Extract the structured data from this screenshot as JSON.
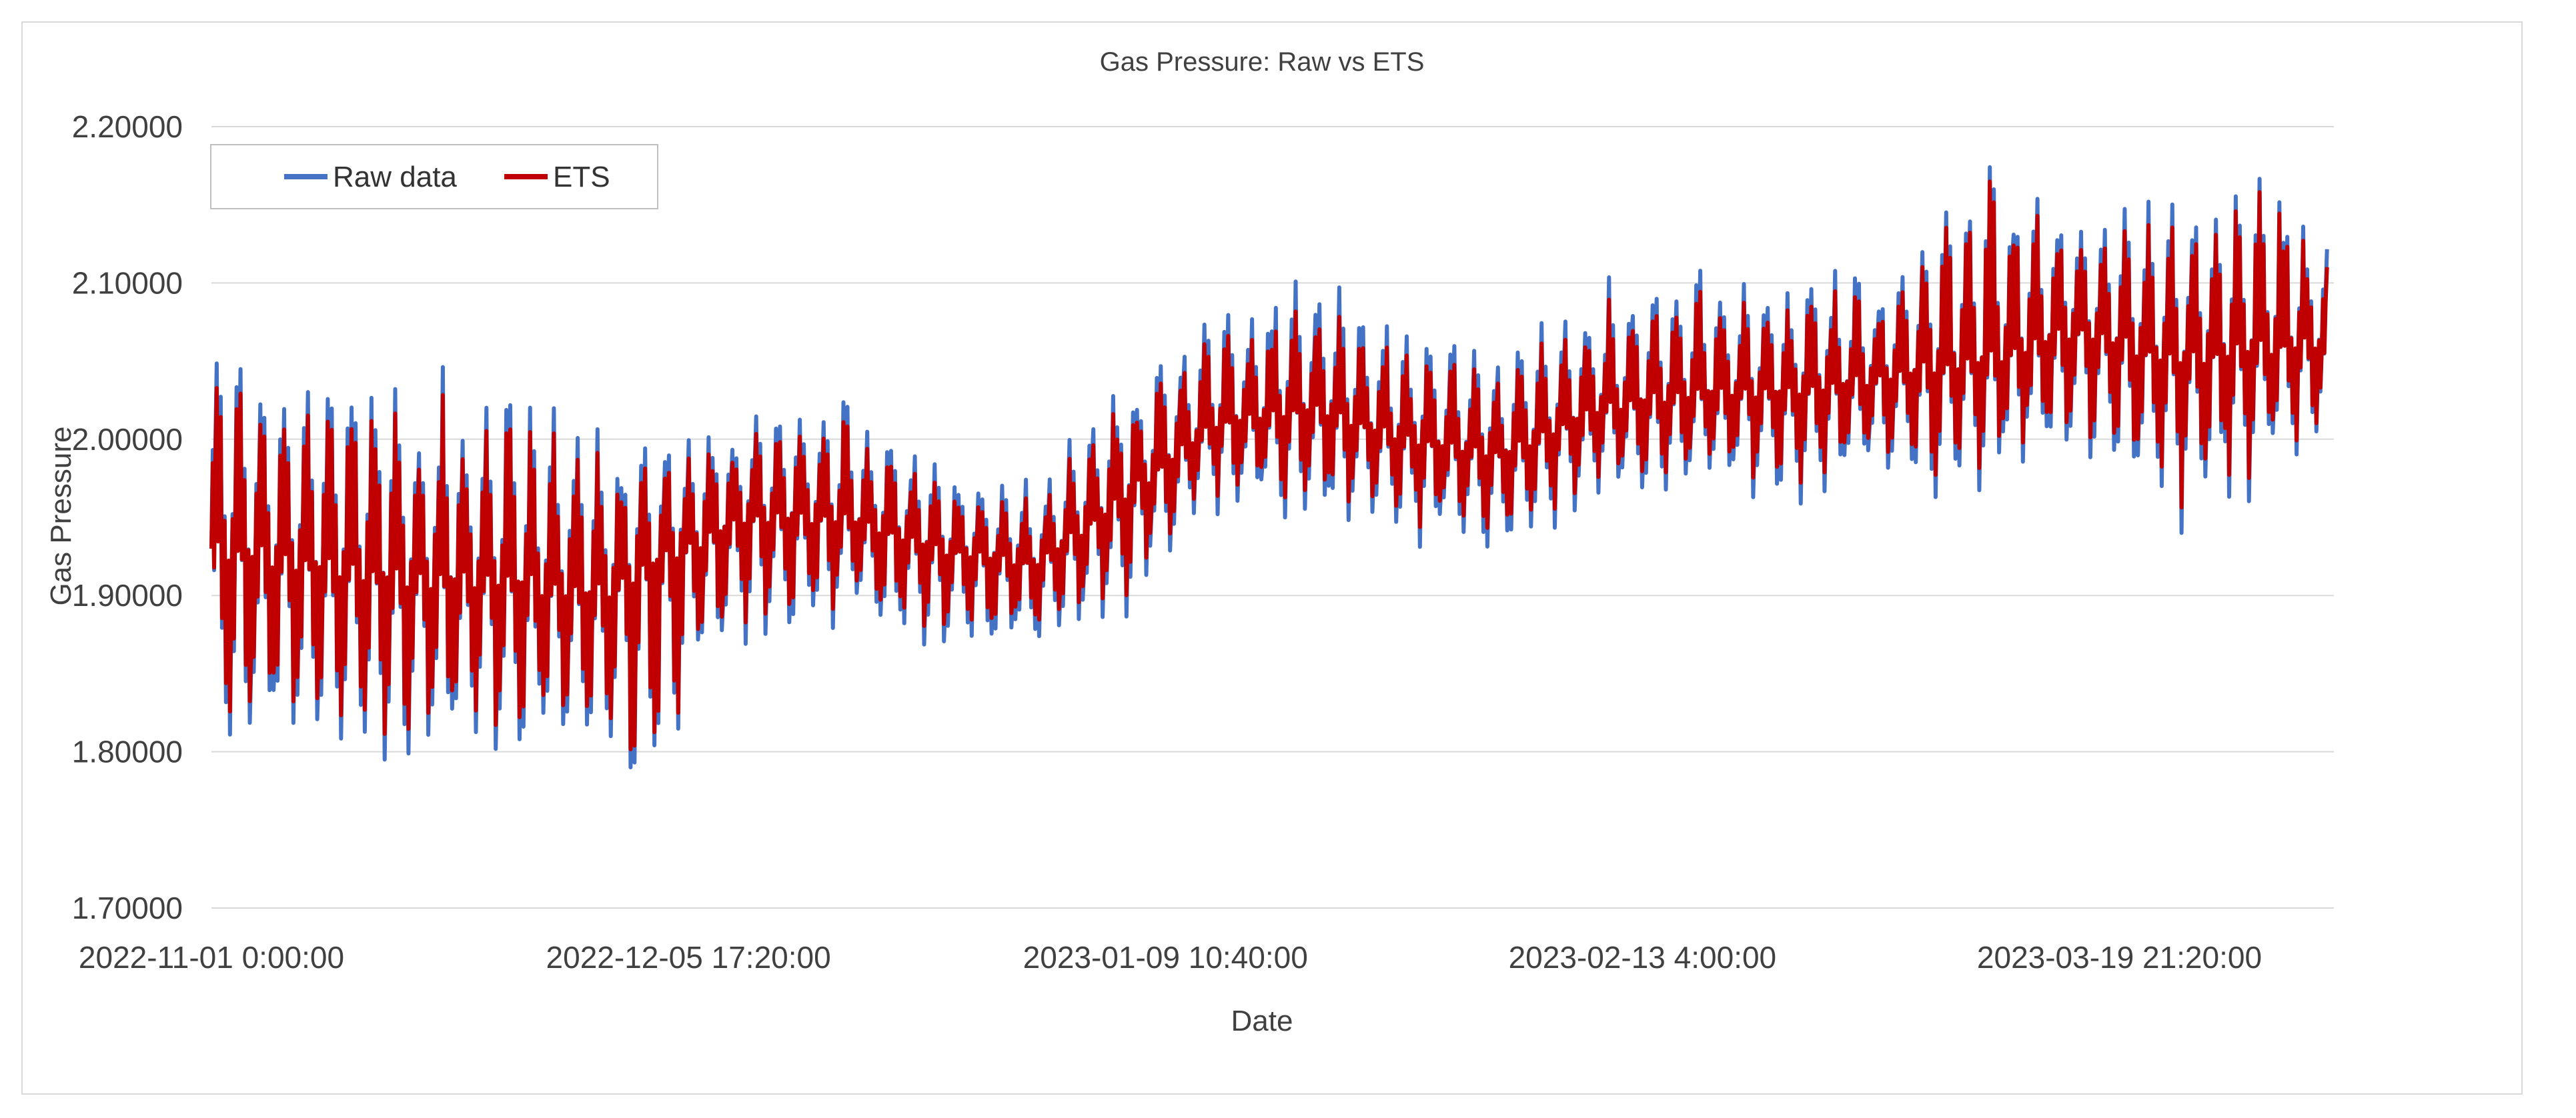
{
  "chart_data": {
    "type": "line",
    "title": "Gas Pressure: Raw vs ETS",
    "xlabel": "Date",
    "ylabel": "Gas Pressure",
    "ylim": [
      1.7,
      2.2
    ],
    "ytick_labels": [
      "1.70000",
      "1.80000",
      "1.90000",
      "2.00000",
      "2.10000",
      "2.20000"
    ],
    "xtick_labels": [
      "2022-11-01 0:00:00",
      "2022-12-05 17:20:00",
      "2023-01-09 10:40:00",
      "2023-02-13 4:00:00",
      "2023-03-19 21:20:00"
    ],
    "x_range": [
      "2022-11-01 0:00:00",
      "2023-04-04"
    ],
    "grid": "horizontal",
    "legend_position": "top-left",
    "series": [
      {
        "name": "Raw data",
        "color": "#4472C4",
        "x": [
          "2022-11-01",
          "2022-11-08",
          "2022-11-15",
          "2022-11-22",
          "2022-11-29",
          "2022-12-03",
          "2022-12-10",
          "2022-12-17",
          "2022-12-24",
          "2022-12-31",
          "2023-01-06",
          "2023-01-13",
          "2023-01-20",
          "2023-01-27",
          "2023-02-03",
          "2023-02-10",
          "2023-02-17",
          "2023-02-24",
          "2023-03-03",
          "2023-03-10",
          "2023-03-17",
          "2023-03-24",
          "2023-03-31",
          "2023-04-04"
        ],
        "center": [
          1.93,
          1.92,
          1.91,
          1.91,
          1.9,
          1.92,
          1.95,
          1.95,
          1.93,
          1.92,
          1.96,
          2.01,
          2.02,
          2.0,
          1.99,
          2.02,
          2.03,
          2.03,
          2.04,
          2.05,
          2.07,
          2.05,
          2.06,
          2.06
        ],
        "min": [
          1.76,
          1.78,
          1.78,
          1.78,
          1.77,
          1.77,
          1.86,
          1.86,
          1.85,
          1.86,
          1.87,
          1.94,
          1.94,
          1.92,
          1.92,
          1.94,
          1.95,
          1.95,
          1.95,
          1.96,
          1.97,
          1.93,
          1.95,
          2.0
        ],
        "max": [
          2.08,
          2.06,
          2.07,
          2.05,
          2.03,
          2.01,
          2.04,
          2.04,
          1.99,
          1.98,
          2.06,
          2.09,
          2.13,
          2.08,
          2.07,
          2.11,
          2.12,
          2.12,
          2.12,
          2.2,
          2.15,
          2.17,
          2.2,
          2.14
        ]
      },
      {
        "name": "ETS",
        "color": "#C00000",
        "x": [
          "2022-11-01",
          "2022-11-08",
          "2022-11-15",
          "2022-11-22",
          "2022-11-29",
          "2022-12-03",
          "2022-12-10",
          "2022-12-17",
          "2022-12-24",
          "2022-12-31",
          "2023-01-06",
          "2023-01-13",
          "2023-01-20",
          "2023-01-27",
          "2023-02-03",
          "2023-02-10",
          "2023-02-17",
          "2023-02-24",
          "2023-03-03",
          "2023-03-10",
          "2023-03-17",
          "2023-03-24",
          "2023-03-31",
          "2023-04-04"
        ],
        "center": [
          1.93,
          1.92,
          1.91,
          1.91,
          1.9,
          1.92,
          1.95,
          1.95,
          1.93,
          1.92,
          1.96,
          2.01,
          2.02,
          2.0,
          1.99,
          2.02,
          2.03,
          2.03,
          2.04,
          2.05,
          2.07,
          2.05,
          2.06,
          2.06
        ],
        "min": [
          1.77,
          1.79,
          1.79,
          1.79,
          1.78,
          1.77,
          1.87,
          1.87,
          1.86,
          1.87,
          1.88,
          1.95,
          1.95,
          1.93,
          1.93,
          1.95,
          1.96,
          1.96,
          1.96,
          1.97,
          1.98,
          1.94,
          1.96,
          2.0
        ],
        "max": [
          2.07,
          2.05,
          2.06,
          2.04,
          2.02,
          2.0,
          2.03,
          2.03,
          1.98,
          1.97,
          2.05,
          2.08,
          2.11,
          2.07,
          2.06,
          2.1,
          2.11,
          2.11,
          2.11,
          2.2,
          2.14,
          2.16,
          2.2,
          2.13
        ]
      }
    ]
  }
}
